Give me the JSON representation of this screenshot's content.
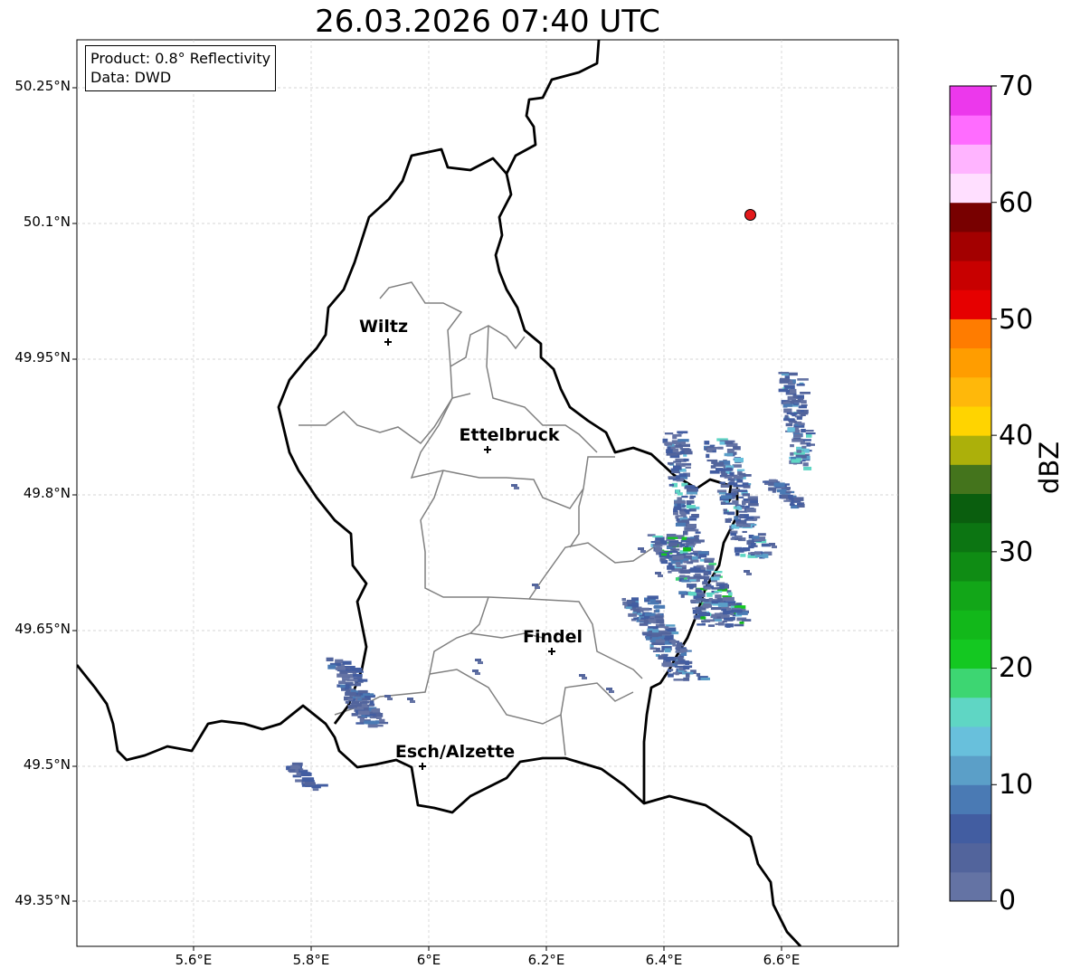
{
  "title": "26.03.2026 07:40 UTC",
  "info": {
    "product": "Product: 0.8° Reflectivity",
    "source": "Data: DWD"
  },
  "latitude_labels": [
    "50.25°N",
    "50.1°N",
    "49.95°N",
    "49.8°N",
    "49.65°N",
    "49.5°N",
    "49.35°N"
  ],
  "longitude_labels": [
    "5.6°E",
    "5.8°E",
    "6°E",
    "6.2°E",
    "6.4°E",
    "6.6°E"
  ],
  "cities": [
    {
      "name": "Wiltz"
    },
    {
      "name": "Ettelbruck"
    },
    {
      "name": "Findel"
    },
    {
      "name": "Esch/Alzette"
    }
  ],
  "radar_site": {
    "color": "#e31a1c"
  },
  "colorbar": {
    "label": "dBZ",
    "ticks": [
      "0",
      "10",
      "20",
      "30",
      "40",
      "50",
      "60",
      "70"
    ],
    "colors": [
      "#6473a4",
      "#52649c",
      "#425da1",
      "#4a7ab4",
      "#5b9fc8",
      "#68c0dc",
      "#5fd6c4",
      "#3dd672",
      "#14c821",
      "#12b81a",
      "#12a618",
      "#0f8c14",
      "#0c7512",
      "#0a5e0e",
      "#44741c",
      "#acb00a",
      "#ffd400",
      "#ffb80a",
      "#ff9d00",
      "#ff7c00",
      "#e60000",
      "#c80000",
      "#a30000",
      "#780000",
      "#ffdfff",
      "#ffb4ff",
      "#ff6cff",
      "#ec38ec"
    ]
  }
}
